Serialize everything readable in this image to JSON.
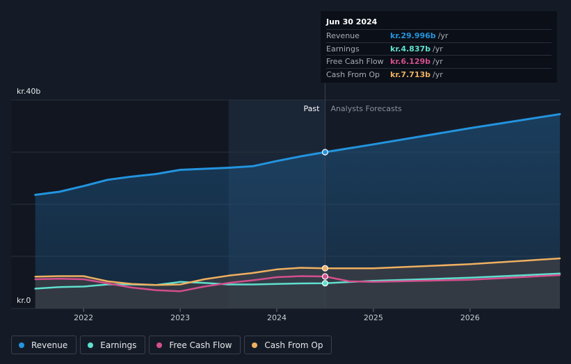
{
  "chart_data": {
    "type": "line",
    "x_axis": {
      "ticks": [
        {
          "label": "2022",
          "x": 2022.0
        },
        {
          "label": "2023",
          "x": 2023.0
        },
        {
          "label": "2024",
          "x": 2024.0
        },
        {
          "label": "2025",
          "x": 2025.0
        },
        {
          "label": "2026",
          "x": 2026.0
        }
      ],
      "range": [
        2021.25,
        2026.93
      ]
    },
    "y_axis": {
      "range": [
        0,
        40
      ],
      "unit": "kr. billion",
      "labels": [
        {
          "label": "kr.40b",
          "y": 40
        },
        {
          "label": "kr.0",
          "y": 0
        }
      ],
      "gridlines": [
        0,
        10,
        20,
        30,
        40
      ]
    },
    "divider": {
      "x": 2024.5,
      "past_label": "Past",
      "forecast_label": "Analysts Forecasts",
      "past_shade_start": 2023.5
    },
    "series": [
      {
        "name": "Revenue",
        "color": "#2394df",
        "area": true,
        "points": [
          [
            2021.5,
            21.8
          ],
          [
            2021.75,
            22.4
          ],
          [
            2022.0,
            23.5
          ],
          [
            2022.25,
            24.7
          ],
          [
            2022.5,
            25.3
          ],
          [
            2022.75,
            25.8
          ],
          [
            2023.0,
            26.6
          ],
          [
            2023.25,
            26.8
          ],
          [
            2023.5,
            27.0
          ],
          [
            2023.75,
            27.3
          ],
          [
            2024.0,
            28.3
          ],
          [
            2024.25,
            29.2
          ],
          [
            2024.5,
            30.0
          ],
          [
            2025.0,
            31.5
          ],
          [
            2026.0,
            34.6
          ],
          [
            2026.93,
            37.3
          ]
        ]
      },
      {
        "name": "Earnings",
        "color": "#5fe0cf",
        "area": false,
        "points": [
          [
            2021.5,
            3.8
          ],
          [
            2021.75,
            4.1
          ],
          [
            2022.0,
            4.2
          ],
          [
            2022.25,
            4.6
          ],
          [
            2022.5,
            4.6
          ],
          [
            2022.75,
            4.5
          ],
          [
            2023.0,
            5.1
          ],
          [
            2023.25,
            4.9
          ],
          [
            2023.5,
            4.6
          ],
          [
            2023.75,
            4.6
          ],
          [
            2024.0,
            4.7
          ],
          [
            2024.25,
            4.8
          ],
          [
            2024.5,
            4.84
          ],
          [
            2025.0,
            5.3
          ],
          [
            2026.0,
            5.9
          ],
          [
            2026.93,
            6.7
          ]
        ]
      },
      {
        "name": "Free Cash Flow",
        "color": "#d44f8d",
        "area": false,
        "points": [
          [
            2021.5,
            5.6
          ],
          [
            2021.75,
            5.7
          ],
          [
            2022.0,
            5.6
          ],
          [
            2022.25,
            4.8
          ],
          [
            2022.5,
            4.0
          ],
          [
            2022.75,
            3.5
          ],
          [
            2023.0,
            3.3
          ],
          [
            2023.25,
            4.2
          ],
          [
            2023.5,
            4.9
          ],
          [
            2023.75,
            5.4
          ],
          [
            2024.0,
            6.0
          ],
          [
            2024.25,
            6.2
          ],
          [
            2024.5,
            6.13
          ],
          [
            2024.75,
            5.2
          ],
          [
            2025.0,
            5.1
          ],
          [
            2026.0,
            5.5
          ],
          [
            2026.93,
            6.4
          ]
        ]
      },
      {
        "name": "Cash From Op",
        "color": "#f0b060",
        "area": true,
        "points": [
          [
            2021.5,
            6.1
          ],
          [
            2021.75,
            6.2
          ],
          [
            2022.0,
            6.2
          ],
          [
            2022.25,
            5.2
          ],
          [
            2022.5,
            4.7
          ],
          [
            2022.75,
            4.5
          ],
          [
            2023.0,
            4.6
          ],
          [
            2023.25,
            5.6
          ],
          [
            2023.5,
            6.3
          ],
          [
            2023.75,
            6.8
          ],
          [
            2024.0,
            7.5
          ],
          [
            2024.25,
            7.8
          ],
          [
            2024.5,
            7.71
          ],
          [
            2025.0,
            7.7
          ],
          [
            2026.0,
            8.5
          ],
          [
            2026.93,
            9.6
          ]
        ]
      }
    ],
    "highlight_x": 2024.5
  },
  "tooltip": {
    "date": "Jun 30 2024",
    "rows": [
      {
        "label": "Revenue",
        "value": "kr.29.996b",
        "unit": "/yr",
        "color": "#2394df"
      },
      {
        "label": "Earnings",
        "value": "kr.4.837b",
        "unit": "/yr",
        "color": "#5fe0cf"
      },
      {
        "label": "Free Cash Flow",
        "value": "kr.6.129b",
        "unit": "/yr",
        "color": "#d44f8d"
      },
      {
        "label": "Cash From Op",
        "value": "kr.7.713b",
        "unit": "/yr",
        "color": "#f0b060"
      }
    ]
  },
  "legend": [
    {
      "label": "Revenue",
      "color": "#2394df"
    },
    {
      "label": "Earnings",
      "color": "#5fe0cf"
    },
    {
      "label": "Free Cash Flow",
      "color": "#d44f8d"
    },
    {
      "label": "Cash From Op",
      "color": "#f0b060"
    }
  ]
}
